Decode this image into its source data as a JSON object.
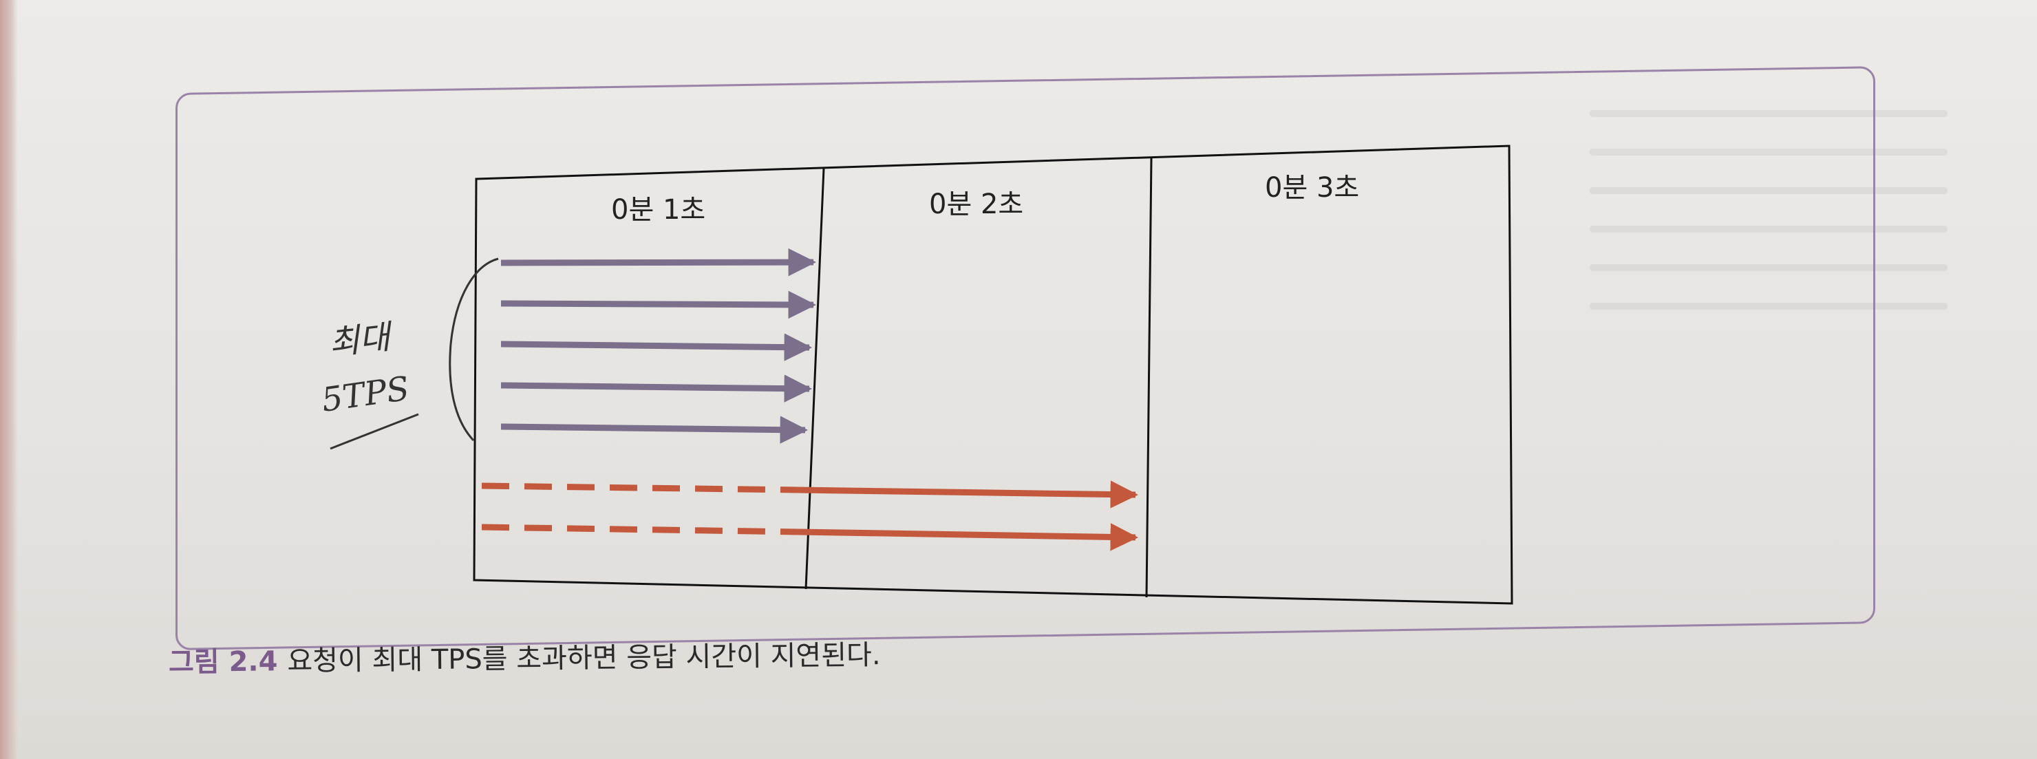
{
  "diagram": {
    "columns": [
      {
        "label": "0분 1초"
      },
      {
        "label": "0분 2초"
      },
      {
        "label": "0분 3초"
      }
    ],
    "handwritten_note": {
      "line1": "최대",
      "line2": "5TPS"
    },
    "arrow_groups": {
      "within_limit": {
        "count": 5,
        "color": "#7b6f8c",
        "style": "solid"
      },
      "over_limit": {
        "count": 2,
        "color": "#c4583c",
        "style": "dashed-then-solid"
      }
    }
  },
  "caption": {
    "figure_number": "그림 2.4",
    "text": "요청이 최대 TPS를 초과하면 응답 시간이 지연된다."
  },
  "colors": {
    "frame_border": "#9a83a8",
    "figure_number": "#7b5a8c",
    "grid_line": "#111111"
  }
}
